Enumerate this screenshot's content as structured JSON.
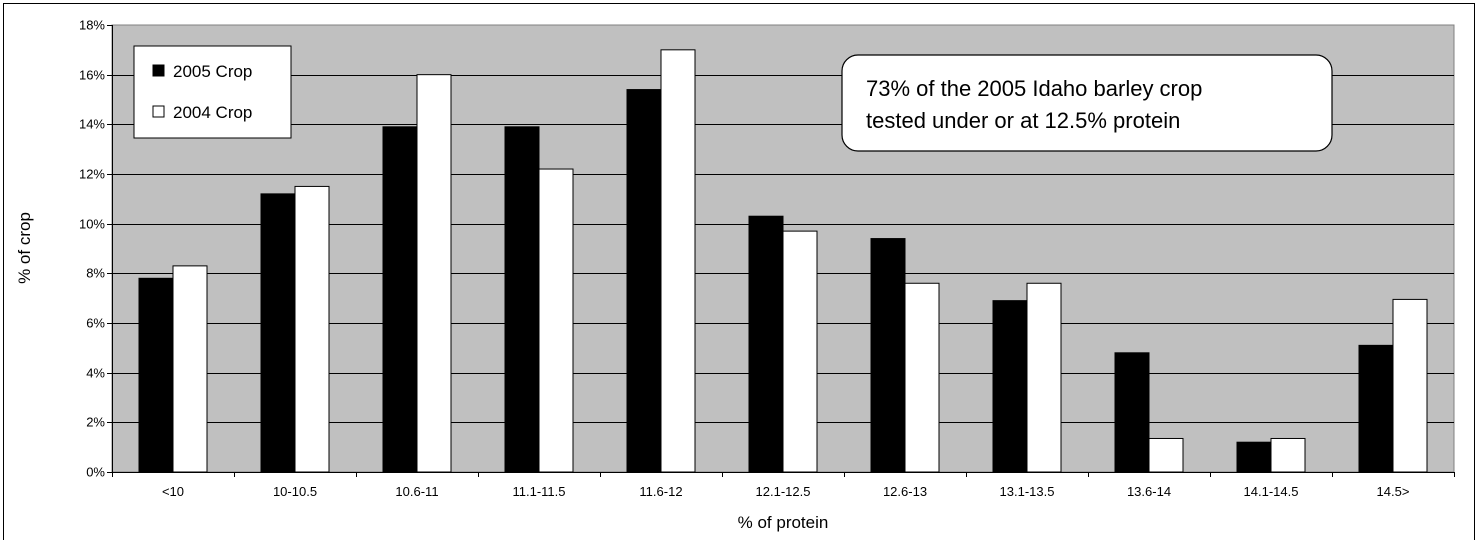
{
  "chart_data": {
    "type": "bar",
    "title": "",
    "xlabel": "% of protein",
    "ylabel": "% of crop",
    "categories": [
      "<10",
      "10-10.5",
      "10.6-11",
      "11.1-11.5",
      "11.6-12",
      "12.1-12.5",
      "12.6-13",
      "13.1-13.5",
      "13.6-14",
      "14.1-14.5",
      "14.5>"
    ],
    "series": [
      {
        "name": "2005 Crop",
        "color": "#000000",
        "values": [
          7.8,
          11.2,
          13.9,
          13.9,
          15.4,
          10.3,
          9.4,
          6.9,
          4.8,
          1.2,
          5.1
        ]
      },
      {
        "name": "2004 Crop",
        "color": "#ffffff",
        "values": [
          8.3,
          11.5,
          16.0,
          12.2,
          17.0,
          9.7,
          7.6,
          7.6,
          1.35,
          1.35,
          6.95
        ]
      }
    ],
    "ylim": [
      0,
      18
    ],
    "yticks": [
      "0%",
      "2%",
      "4%",
      "6%",
      "8%",
      "10%",
      "12%",
      "14%",
      "16%",
      "18%"
    ],
    "grid": true,
    "legend_position": "top-left",
    "plot_background": "#c0c0c0",
    "annotation": {
      "line1": "73% of the 2005 Idaho barley crop",
      "line2": "tested under or at 12.5% protein"
    }
  }
}
